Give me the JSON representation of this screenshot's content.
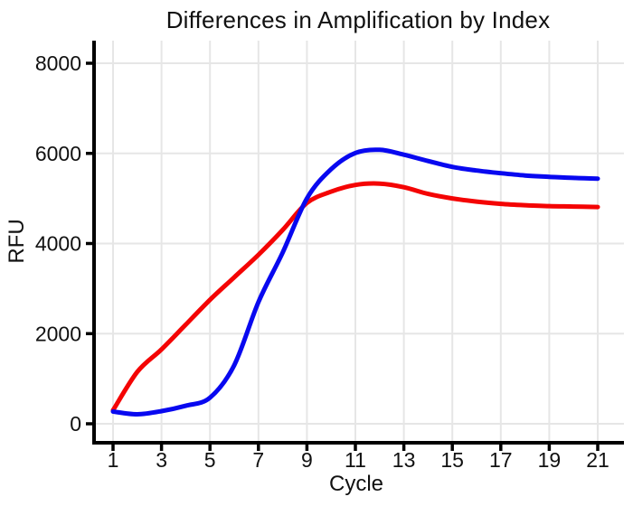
{
  "chart_data": {
    "type": "line",
    "title": "Differences in Amplification by Index",
    "xlabel": "Cycle",
    "ylabel": "RFU",
    "x": [
      1,
      2,
      3,
      4,
      5,
      6,
      7,
      8,
      9,
      10,
      11,
      12,
      13,
      14,
      15,
      16,
      17,
      18,
      19,
      20,
      21
    ],
    "x_ticks": [
      1,
      3,
      5,
      7,
      9,
      11,
      13,
      15,
      17,
      19,
      21
    ],
    "y_ticks": [
      0,
      2000,
      4000,
      6000,
      8000
    ],
    "xlim": [
      0.2,
      22.1
    ],
    "ylim": [
      0,
      8450
    ],
    "grid": true,
    "legend": "none",
    "series": [
      {
        "name": "red-curve",
        "color": "#f40404",
        "values": [
          300,
          1150,
          1650,
          2200,
          2750,
          3250,
          3750,
          4300,
          4900,
          5150,
          5300,
          5330,
          5250,
          5100,
          5000,
          4930,
          4880,
          4850,
          4830,
          4820,
          4810
        ]
      },
      {
        "name": "blue-curve",
        "color": "#0808f0",
        "values": [
          270,
          210,
          280,
          400,
          580,
          1300,
          2700,
          3800,
          5000,
          5650,
          6010,
          6080,
          5970,
          5830,
          5700,
          5620,
          5560,
          5510,
          5480,
          5455,
          5440
        ]
      }
    ],
    "colors": {
      "axis": "#000000",
      "grid": "#e6e6e6",
      "text": "#111111"
    }
  }
}
